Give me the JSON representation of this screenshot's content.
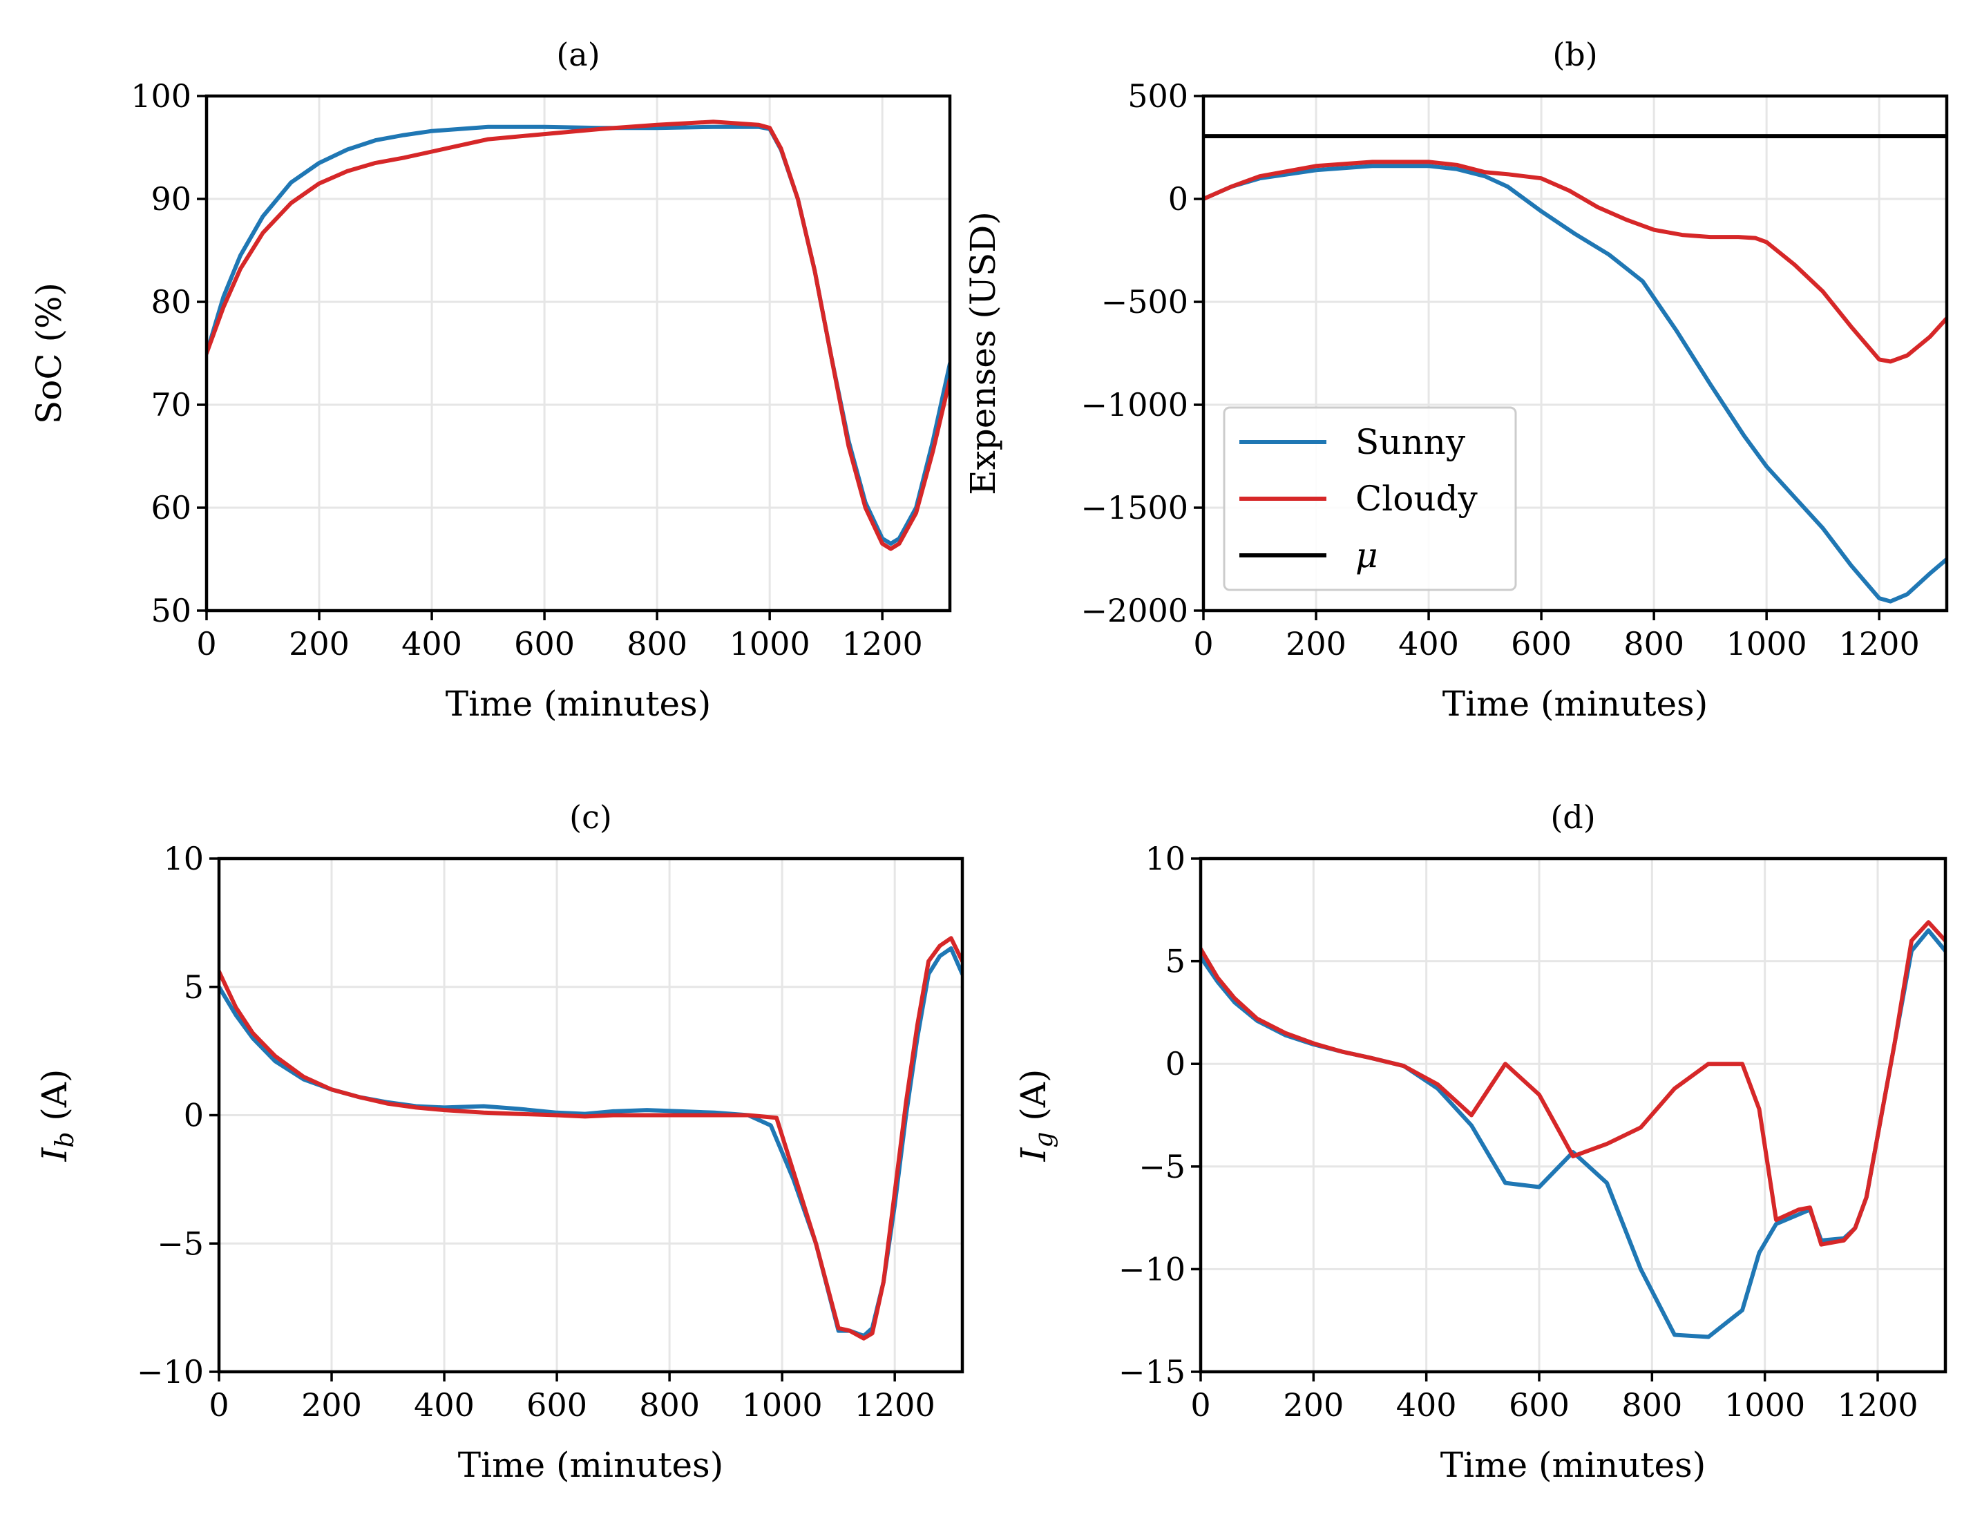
{
  "colors": {
    "sunny": "#1f77b4",
    "cloudy": "#d62728",
    "mu": "#000000"
  },
  "chart_data": [
    {
      "type": "line",
      "id": "a",
      "title": "(a)",
      "xlabel": "Time (minutes)",
      "ylabel": "SoC (%)",
      "xlim": [
        0,
        1320
      ],
      "ylim": [
        50,
        100
      ],
      "xticks": [
        0,
        200,
        400,
        600,
        800,
        1000,
        1200
      ],
      "xtick_labels": [
        "0",
        "200",
        "400",
        "600",
        "800",
        "1000",
        "1200"
      ],
      "yticks": [
        50,
        60,
        70,
        80,
        90,
        100
      ],
      "ytick_labels": [
        "50",
        "60",
        "70",
        "80",
        "90",
        "100"
      ],
      "grid": true,
      "series": [
        {
          "name": "Sunny",
          "color_key": "sunny",
          "x": [
            0,
            30,
            60,
            100,
            150,
            200,
            250,
            300,
            350,
            400,
            500,
            600,
            700,
            800,
            900,
            980,
            1000,
            1020,
            1050,
            1080,
            1110,
            1140,
            1170,
            1200,
            1215,
            1230,
            1260,
            1290,
            1320
          ],
          "y": [
            75,
            80.5,
            84.5,
            88.3,
            91.6,
            93.5,
            94.8,
            95.7,
            96.2,
            96.6,
            97,
            97,
            96.9,
            96.9,
            97,
            97,
            96.8,
            94.8,
            90,
            83,
            74.5,
            66.5,
            60.5,
            57,
            56.5,
            57,
            60,
            66.5,
            74
          ]
        },
        {
          "name": "Cloudy",
          "color_key": "cloudy",
          "x": [
            0,
            30,
            60,
            100,
            150,
            200,
            250,
            300,
            350,
            400,
            500,
            600,
            700,
            800,
            900,
            980,
            1000,
            1020,
            1050,
            1080,
            1110,
            1140,
            1170,
            1200,
            1215,
            1230,
            1260,
            1290,
            1320
          ],
          "y": [
            75,
            79.5,
            83.2,
            86.7,
            89.6,
            91.5,
            92.7,
            93.5,
            94,
            94.6,
            95.8,
            96.3,
            96.8,
            97.2,
            97.5,
            97.2,
            96.9,
            94.9,
            90,
            83,
            74.5,
            66,
            60,
            56.5,
            56,
            56.5,
            59.5,
            65.5,
            72.5
          ]
        }
      ]
    },
    {
      "type": "line",
      "id": "b",
      "title": "(b)",
      "xlabel": "Time (minutes)",
      "ylabel": "Expenses (USD)",
      "xlim": [
        0,
        1320
      ],
      "ylim": [
        -2000,
        500
      ],
      "xticks": [
        0,
        200,
        400,
        600,
        800,
        1000,
        1200
      ],
      "xtick_labels": [
        "0",
        "200",
        "400",
        "600",
        "800",
        "1000",
        "1200"
      ],
      "yticks": [
        -2000,
        -1500,
        -1000,
        -500,
        0,
        500
      ],
      "ytick_labels": [
        "−2000",
        "−1500",
        "−1000",
        "−500",
        "0",
        "500"
      ],
      "grid": true,
      "legend": {
        "position": "lower-left",
        "entries": [
          "Sunny",
          "Cloudy",
          "μ"
        ]
      },
      "series": [
        {
          "name": "Sunny",
          "color_key": "sunny",
          "x": [
            0,
            50,
            100,
            200,
            300,
            400,
            450,
            500,
            540,
            600,
            660,
            720,
            780,
            840,
            900,
            960,
            1000,
            1050,
            1100,
            1150,
            1200,
            1220,
            1250,
            1290,
            1320
          ],
          "y": [
            0,
            60,
            100,
            140,
            160,
            160,
            145,
            110,
            60,
            -60,
            -170,
            -270,
            -400,
            -640,
            -900,
            -1150,
            -1300,
            -1450,
            -1600,
            -1780,
            -1940,
            -1955,
            -1920,
            -1820,
            -1750
          ]
        },
        {
          "name": "Cloudy",
          "color_key": "cloudy",
          "x": [
            0,
            50,
            100,
            200,
            300,
            400,
            450,
            500,
            540,
            600,
            650,
            700,
            750,
            800,
            850,
            900,
            950,
            980,
            1000,
            1050,
            1100,
            1150,
            1200,
            1220,
            1250,
            1290,
            1320
          ],
          "y": [
            0,
            60,
            110,
            160,
            180,
            180,
            165,
            130,
            120,
            100,
            40,
            -40,
            -100,
            -150,
            -175,
            -185,
            -185,
            -190,
            -210,
            -320,
            -450,
            -620,
            -780,
            -790,
            -760,
            -670,
            -580
          ]
        },
        {
          "name": "μ",
          "color_key": "mu",
          "x": [
            0,
            1320
          ],
          "y": [
            305,
            305
          ]
        }
      ]
    },
    {
      "type": "line",
      "id": "c",
      "title": "(c)",
      "xlabel": "Time (minutes)",
      "ylabel": "I_b (A)",
      "xlim": [
        0,
        1320
      ],
      "ylim": [
        -10,
        10
      ],
      "xticks": [
        0,
        200,
        400,
        600,
        800,
        1000,
        1200
      ],
      "xtick_labels": [
        "0",
        "200",
        "400",
        "600",
        "800",
        "1000",
        "1200"
      ],
      "yticks": [
        -10,
        -5,
        0,
        5,
        10
      ],
      "ytick_labels": [
        "−10",
        "−5",
        "0",
        "5",
        "10"
      ],
      "grid": true,
      "series": [
        {
          "name": "Sunny",
          "color_key": "sunny",
          "x": [
            0,
            30,
            60,
            100,
            150,
            200,
            250,
            300,
            350,
            400,
            470,
            530,
            600,
            650,
            700,
            760,
            820,
            880,
            940,
            980,
            1020,
            1060,
            1100,
            1120,
            1145,
            1160,
            1180,
            1200,
            1220,
            1240,
            1260,
            1280,
            1300,
            1320
          ],
          "y": [
            5,
            3.9,
            3.0,
            2.1,
            1.4,
            1.0,
            0.7,
            0.5,
            0.35,
            0.3,
            0.35,
            0.25,
            0.1,
            0.05,
            0.15,
            0.2,
            0.15,
            0.1,
            0,
            -0.4,
            -2.5,
            -5,
            -8.4,
            -8.4,
            -8.6,
            -8.3,
            -6.5,
            -3.5,
            0,
            3,
            5.5,
            6.2,
            6.5,
            5.5
          ]
        },
        {
          "name": "Cloudy",
          "color_key": "cloudy",
          "x": [
            0,
            30,
            60,
            100,
            150,
            200,
            250,
            300,
            350,
            400,
            470,
            530,
            600,
            650,
            700,
            760,
            820,
            880,
            940,
            990,
            1020,
            1060,
            1100,
            1120,
            1145,
            1160,
            1180,
            1200,
            1220,
            1240,
            1260,
            1280,
            1300,
            1320
          ],
          "y": [
            5.6,
            4.2,
            3.2,
            2.3,
            1.5,
            1.0,
            0.7,
            0.45,
            0.3,
            0.2,
            0.1,
            0.05,
            0,
            -0.05,
            0,
            0,
            0,
            0,
            0,
            -0.1,
            -2.2,
            -5.0,
            -8.3,
            -8.4,
            -8.7,
            -8.5,
            -6.5,
            -3.0,
            0.5,
            3.5,
            6.0,
            6.6,
            6.9,
            6.0
          ]
        }
      ]
    },
    {
      "type": "line",
      "id": "d",
      "title": "(d)",
      "xlabel": "Time (minutes)",
      "ylabel": "I_g (A)",
      "xlim": [
        0,
        1320
      ],
      "ylim": [
        -15,
        10
      ],
      "xticks": [
        0,
        200,
        400,
        600,
        800,
        1000,
        1200
      ],
      "xtick_labels": [
        "0",
        "200",
        "400",
        "600",
        "800",
        "1000",
        "1200"
      ],
      "yticks": [
        -15,
        -10,
        -5,
        0,
        5,
        10
      ],
      "ytick_labels": [
        "−15",
        "−10",
        "−5",
        "0",
        "5",
        "10"
      ],
      "grid": true,
      "series": [
        {
          "name": "Sunny",
          "color_key": "sunny",
          "x": [
            0,
            30,
            60,
            100,
            150,
            200,
            250,
            300,
            360,
            420,
            480,
            540,
            600,
            660,
            720,
            780,
            840,
            900,
            960,
            990,
            1020,
            1080,
            1100,
            1140,
            1160,
            1180,
            1200,
            1230,
            1260,
            1290,
            1320
          ],
          "y": [
            5.2,
            4.0,
            3.0,
            2.1,
            1.4,
            0.95,
            0.6,
            0.3,
            -0.1,
            -1.2,
            -3.0,
            -5.8,
            -6.0,
            -4.3,
            -5.8,
            -10.0,
            -13.2,
            -13.3,
            -12.0,
            -9.2,
            -7.8,
            -7.1,
            -8.6,
            -8.5,
            -8.0,
            -6.5,
            -3.5,
            1.0,
            5.5,
            6.5,
            5.5
          ]
        },
        {
          "name": "Cloudy",
          "color_key": "cloudy",
          "x": [
            0,
            30,
            60,
            100,
            150,
            200,
            250,
            300,
            360,
            420,
            480,
            540,
            600,
            660,
            720,
            780,
            840,
            900,
            960,
            990,
            1020,
            1060,
            1080,
            1100,
            1140,
            1160,
            1180,
            1200,
            1230,
            1260,
            1290,
            1320
          ],
          "y": [
            5.6,
            4.2,
            3.2,
            2.2,
            1.5,
            1.0,
            0.6,
            0.3,
            -0.1,
            -1.0,
            -2.5,
            0,
            -1.5,
            -4.5,
            -3.9,
            -3.1,
            -1.2,
            0,
            0,
            -2.2,
            -7.6,
            -7.1,
            -7.0,
            -8.8,
            -8.6,
            -8.0,
            -6.5,
            -3.5,
            1.0,
            6.0,
            6.9,
            6.0
          ]
        }
      ]
    }
  ]
}
